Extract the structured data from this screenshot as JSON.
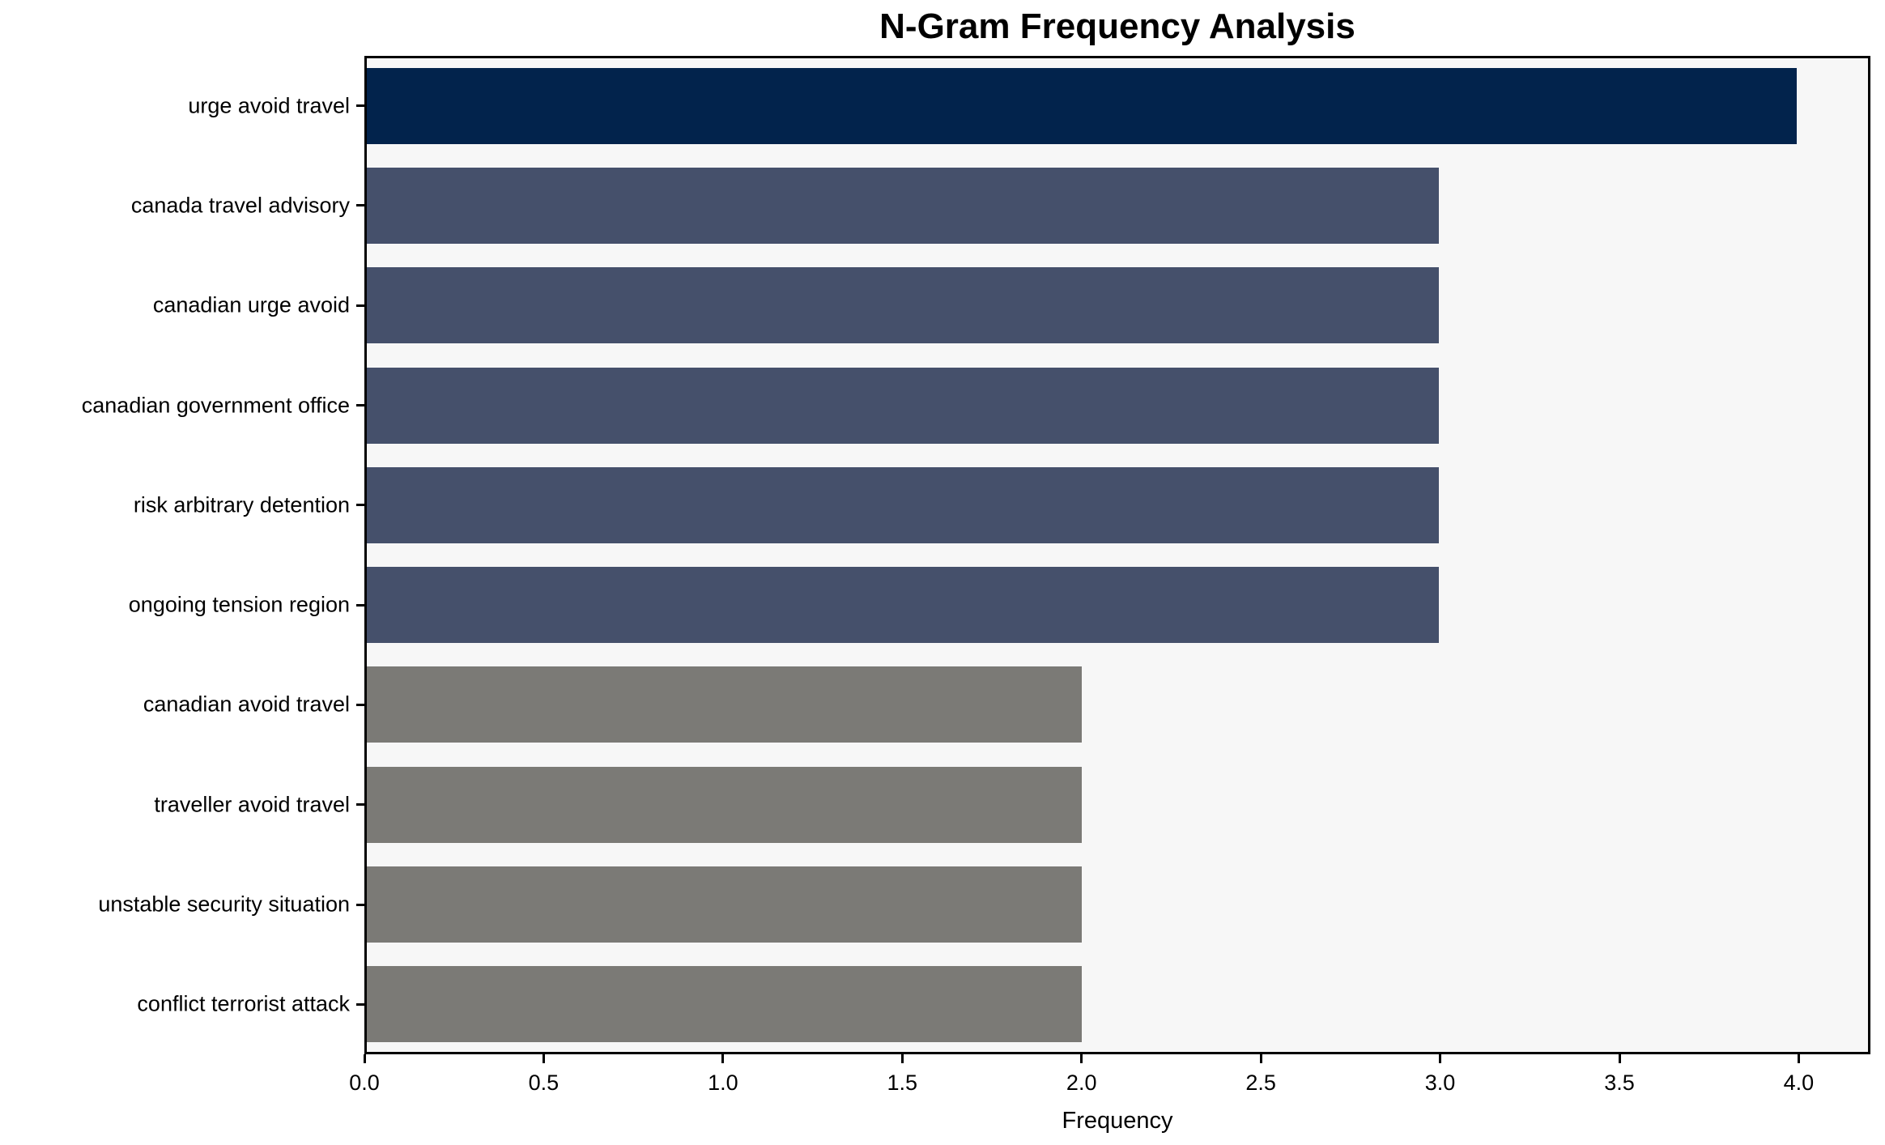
{
  "figure": {
    "background_color": "#ffffff",
    "plot_background_color": "#f7f7f7",
    "frame_color": "#000000"
  },
  "chart_data": {
    "type": "bar",
    "orientation": "horizontal",
    "title": "N-Gram Frequency Analysis",
    "xlabel": "Frequency",
    "ylabel": "",
    "categories": [
      "urge avoid travel",
      "canada travel advisory",
      "canadian urge avoid",
      "canadian government office",
      "risk arbitrary detention",
      "ongoing tension region",
      "canadian avoid travel",
      "traveller avoid travel",
      "unstable security situation",
      "conflict terrorist attack"
    ],
    "values": [
      4,
      3,
      3,
      3,
      3,
      3,
      2,
      2,
      2,
      2
    ],
    "bar_colors": [
      "#02234C",
      "#45506B",
      "#45506B",
      "#45506B",
      "#45506B",
      "#45506B",
      "#7B7A76",
      "#7B7A76",
      "#7B7A76",
      "#7B7A76"
    ],
    "xlim": [
      0,
      4.2
    ],
    "xticks": [
      0.0,
      0.5,
      1.0,
      1.5,
      2.0,
      2.5,
      3.0,
      3.5,
      4.0
    ],
    "xtick_labels": [
      "0.0",
      "0.5",
      "1.0",
      "1.5",
      "2.0",
      "2.5",
      "3.0",
      "3.5",
      "4.0"
    ],
    "grid": false,
    "legend": null
  }
}
